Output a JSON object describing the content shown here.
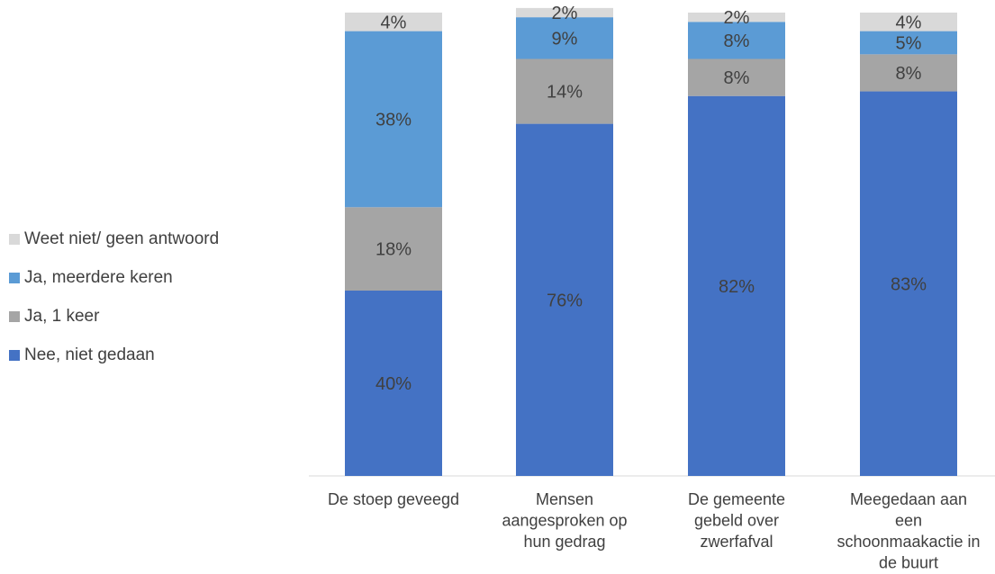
{
  "chart_data": {
    "type": "bar",
    "stacked": true,
    "orientation": "vertical",
    "categories": [
      [
        "De stoep geveegd"
      ],
      [
        "Mensen",
        "aangesproken op",
        "hun gedrag"
      ],
      [
        "De gemeente",
        "gebeld over",
        "zwerfafval"
      ],
      [
        "Meegedaan aan",
        "een",
        "schoonmaakactie in",
        "de buurt"
      ]
    ],
    "series": [
      {
        "name": "Nee, niet gedaan",
        "color": "#4472C4",
        "values": [
          40,
          76,
          82,
          83
        ],
        "labels": [
          "40%",
          "76%",
          "82%",
          "83%"
        ]
      },
      {
        "name": "Ja, 1 keer",
        "color": "#A5A5A5",
        "values": [
          18,
          14,
          8,
          8
        ],
        "labels": [
          "18%",
          "14%",
          "8%",
          "8%"
        ]
      },
      {
        "name": "Ja, meerdere keren",
        "color": "#5B9BD5",
        "values": [
          38,
          9,
          8,
          5
        ],
        "labels": [
          "38%",
          "9%",
          "8%",
          "5%"
        ]
      },
      {
        "name": "Weet niet/ geen antwoord",
        "color": "#D9D9D9",
        "values": [
          4,
          2,
          2,
          4
        ],
        "labels": [
          "4%",
          "2%",
          "2%",
          "4%"
        ]
      }
    ],
    "ylim": [
      0,
      100
    ],
    "grid": false,
    "legend_position": "left"
  }
}
